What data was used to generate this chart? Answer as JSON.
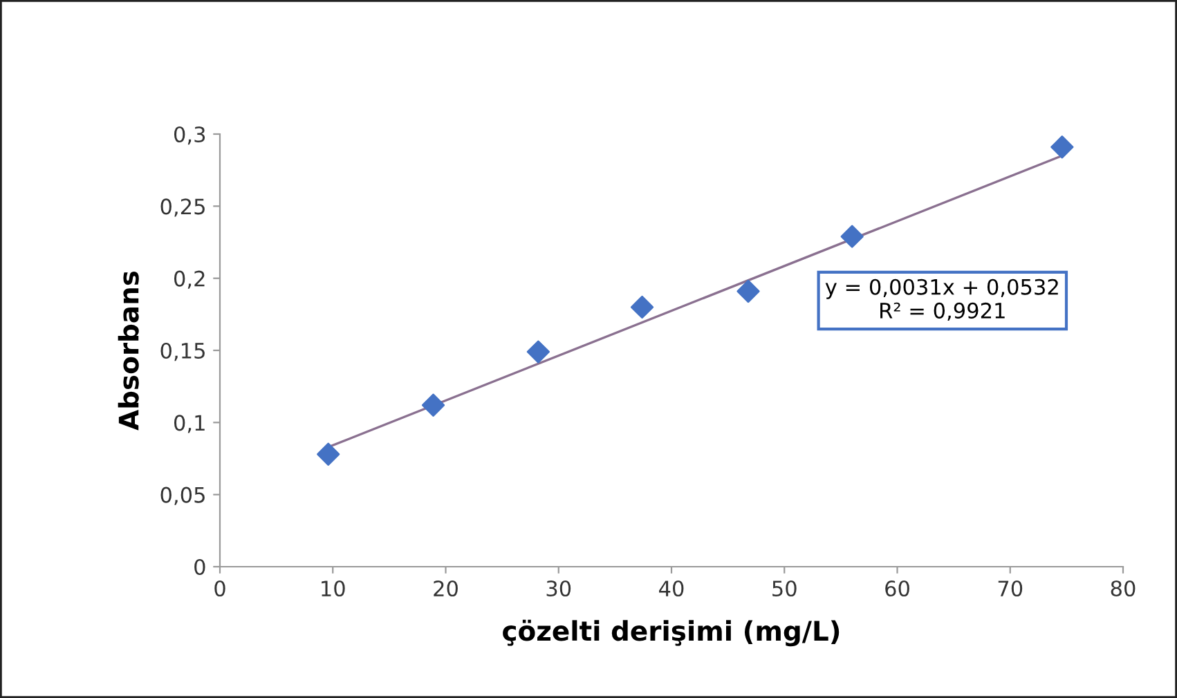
{
  "chart_data": {
    "type": "scatter",
    "xlabel": "çözelti derişimi (mg/L)",
    "ylabel": "Absorbans",
    "xlim": [
      0,
      80
    ],
    "ylim": [
      0,
      0.3
    ],
    "xticks": [
      {
        "value": 0,
        "label": "0"
      },
      {
        "value": 10,
        "label": "10"
      },
      {
        "value": 20,
        "label": "20"
      },
      {
        "value": 30,
        "label": "30"
      },
      {
        "value": 40,
        "label": "40"
      },
      {
        "value": 50,
        "label": "50"
      },
      {
        "value": 60,
        "label": "60"
      },
      {
        "value": 70,
        "label": "70"
      },
      {
        "value": 80,
        "label": "80"
      }
    ],
    "yticks": [
      {
        "value": 0,
        "label": "0"
      },
      {
        "value": 0.05,
        "label": "0,05"
      },
      {
        "value": 0.1,
        "label": "0,1"
      },
      {
        "value": 0.15,
        "label": "0,15"
      },
      {
        "value": 0.2,
        "label": "0,2"
      },
      {
        "value": 0.25,
        "label": "0,25"
      },
      {
        "value": 0.3,
        "label": "0,3"
      }
    ],
    "grid": false,
    "legend": false,
    "marker": "diamond",
    "series": [
      {
        "color": "#4472c4",
        "x": [
          9.6,
          18.9,
          28.2,
          37.4,
          46.8,
          56.0,
          74.6
        ],
        "values": [
          0.078,
          0.112,
          0.149,
          0.18,
          0.191,
          0.229,
          0.291
        ]
      },
      {
        "type": "line",
        "color": "#8a7090",
        "x": [
          9.3,
          74.6
        ],
        "values": [
          0.082,
          0.285
        ],
        "marker": "none"
      }
    ],
    "annotations": [
      "y = 0,0031x + 0,0532\nR² = 0,9921"
    ]
  }
}
